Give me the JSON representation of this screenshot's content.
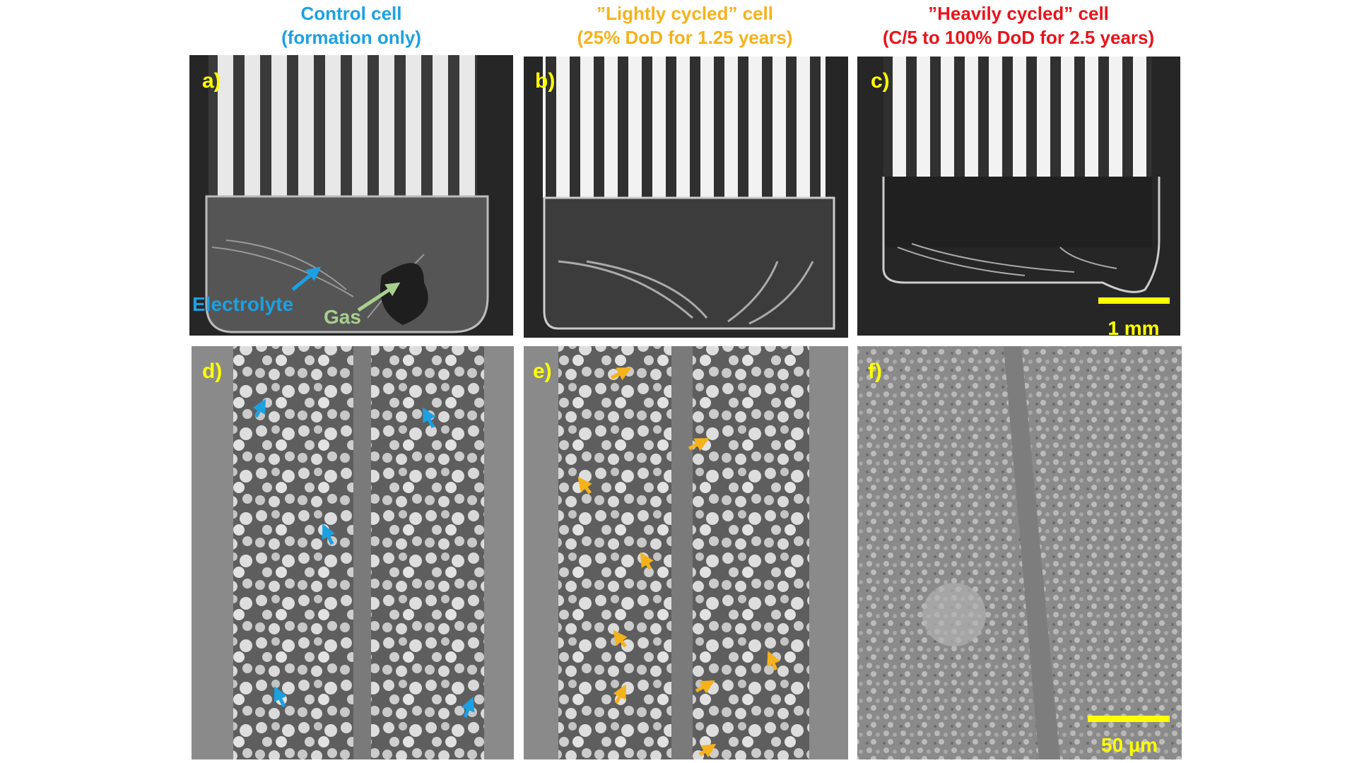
{
  "columns": [
    {
      "title": "Control cell",
      "subtitle": "(formation only)"
    },
    {
      "title": "”Lightly cycled” cell",
      "subtitle": "(25% DoD for 1.25 years)"
    },
    {
      "title": "”Heavily cycled” cell",
      "subtitle": "(C/5 to 100% DoD for 2.5 years)"
    }
  ],
  "panels": [
    {
      "label": "a)"
    },
    {
      "label": "b)"
    },
    {
      "label": "c)"
    },
    {
      "label": "d)"
    },
    {
      "label": "e)"
    },
    {
      "label": "f)"
    }
  ],
  "annotations": {
    "electrolyte": "Electrolyte",
    "gas": "Gas"
  },
  "scale_bars": [
    "1 mm",
    "50 µm"
  ]
}
